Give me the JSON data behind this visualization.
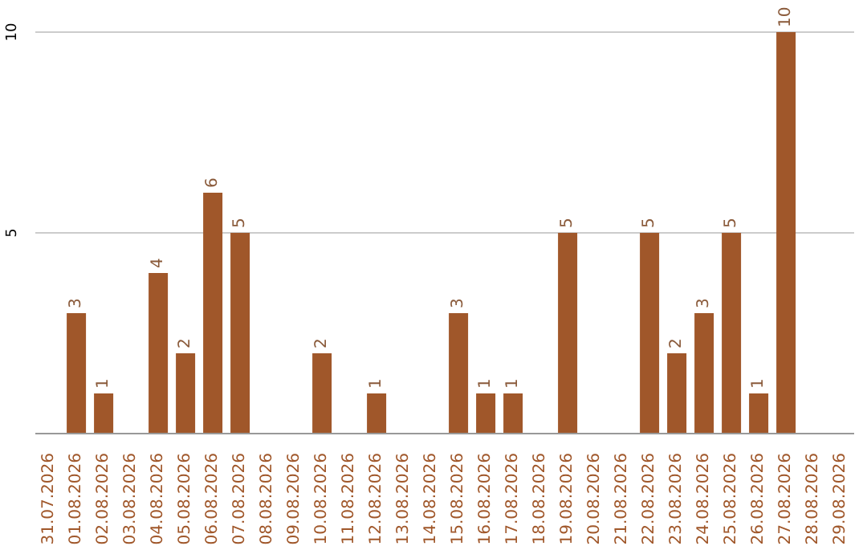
{
  "chart_data": {
    "type": "bar",
    "categories": [
      "31.07.2026",
      "01.08.2026",
      "02.08.2026",
      "03.08.2026",
      "04.08.2026",
      "05.08.2026",
      "06.08.2026",
      "07.08.2026",
      "08.08.2026",
      "09.08.2026",
      "10.08.2026",
      "11.08.2026",
      "12.08.2026",
      "13.08.2026",
      "14.08.2026",
      "15.08.2026",
      "16.08.2026",
      "17.08.2026",
      "18.08.2026",
      "19.08.2026",
      "20.08.2026",
      "21.08.2026",
      "22.08.2026",
      "23.08.2026",
      "24.08.2026",
      "25.08.2026",
      "26.08.2026",
      "27.08.2026",
      "28.08.2026",
      "29.08.2026"
    ],
    "values": [
      0,
      3,
      1,
      0,
      4,
      2,
      6,
      5,
      0,
      0,
      2,
      0,
      1,
      0,
      0,
      3,
      1,
      1,
      0,
      5,
      0,
      0,
      5,
      2,
      3,
      5,
      1,
      10,
      0,
      0
    ],
    "value_labels": [
      null,
      "3",
      "1",
      null,
      "4",
      "2",
      "6",
      "5",
      null,
      null,
      "2",
      null,
      "1",
      null,
      null,
      "3",
      "1",
      "1",
      null,
      "5",
      null,
      null,
      "5",
      "2",
      "3",
      "5",
      "1",
      "10",
      null,
      null
    ],
    "color": "#a0572a",
    "ylim": [
      0,
      10
    ],
    "yticks": [
      5,
      10
    ],
    "grid": "y"
  }
}
